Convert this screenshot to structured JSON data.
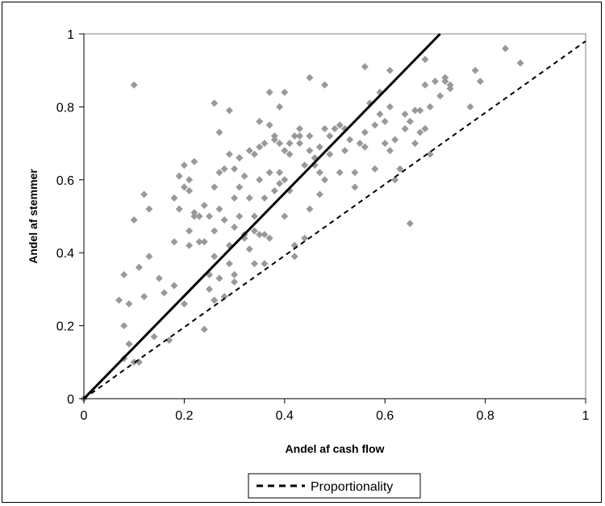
{
  "chart_data": {
    "type": "scatter",
    "title": "",
    "xlabel": "Andel af cash flow",
    "ylabel": "Andel af stemmer",
    "xlim": [
      0,
      1
    ],
    "ylim": [
      0,
      1
    ],
    "x_ticks": [
      "0",
      "0.2",
      "0.4",
      "0.6",
      "0.8",
      "1"
    ],
    "y_ticks": [
      "0",
      "0.2",
      "0.4",
      "0.6",
      "0.8",
      "1"
    ],
    "grid": false,
    "legend": {
      "position": "bottom",
      "entries": [
        "Proportionality"
      ]
    },
    "marker_color": "#999999",
    "series": [
      {
        "kind": "points",
        "points": [
          [
            0.0,
            0.0
          ],
          [
            0.07,
            0.27
          ],
          [
            0.08,
            0.11
          ],
          [
            0.08,
            0.34
          ],
          [
            0.08,
            0.2
          ],
          [
            0.09,
            0.15
          ],
          [
            0.09,
            0.26
          ],
          [
            0.1,
            0.49
          ],
          [
            0.1,
            0.86
          ],
          [
            0.1,
            0.1
          ],
          [
            0.11,
            0.1
          ],
          [
            0.11,
            0.36
          ],
          [
            0.12,
            0.56
          ],
          [
            0.12,
            0.28
          ],
          [
            0.13,
            0.39
          ],
          [
            0.13,
            0.52
          ],
          [
            0.14,
            0.17
          ],
          [
            0.15,
            0.33
          ],
          [
            0.16,
            0.29
          ],
          [
            0.17,
            0.16
          ],
          [
            0.18,
            0.31
          ],
          [
            0.18,
            0.43
          ],
          [
            0.18,
            0.55
          ],
          [
            0.19,
            0.61
          ],
          [
            0.19,
            0.52
          ],
          [
            0.2,
            0.64
          ],
          [
            0.2,
            0.58
          ],
          [
            0.2,
            0.26
          ],
          [
            0.21,
            0.42
          ],
          [
            0.21,
            0.6
          ],
          [
            0.21,
            0.57
          ],
          [
            0.21,
            0.46
          ],
          [
            0.22,
            0.65
          ],
          [
            0.22,
            0.51
          ],
          [
            0.22,
            0.5
          ],
          [
            0.23,
            0.43
          ],
          [
            0.23,
            0.5
          ],
          [
            0.24,
            0.19
          ],
          [
            0.24,
            0.43
          ],
          [
            0.24,
            0.53
          ],
          [
            0.25,
            0.3
          ],
          [
            0.25,
            0.34
          ],
          [
            0.25,
            0.5
          ],
          [
            0.26,
            0.27
          ],
          [
            0.26,
            0.39
          ],
          [
            0.26,
            0.46
          ],
          [
            0.26,
            0.58
          ],
          [
            0.26,
            0.81
          ],
          [
            0.27,
            0.73
          ],
          [
            0.27,
            0.33
          ],
          [
            0.27,
            0.62
          ],
          [
            0.27,
            0.52
          ],
          [
            0.28,
            0.28
          ],
          [
            0.28,
            0.49
          ],
          [
            0.28,
            0.63
          ],
          [
            0.29,
            0.37
          ],
          [
            0.29,
            0.42
          ],
          [
            0.29,
            0.67
          ],
          [
            0.29,
            0.79
          ],
          [
            0.3,
            0.32
          ],
          [
            0.3,
            0.34
          ],
          [
            0.3,
            0.47
          ],
          [
            0.3,
            0.55
          ],
          [
            0.3,
            0.63
          ],
          [
            0.31,
            0.66
          ],
          [
            0.31,
            0.5
          ],
          [
            0.31,
            0.66
          ],
          [
            0.31,
            0.58
          ],
          [
            0.32,
            0.44
          ],
          [
            0.32,
            0.61
          ],
          [
            0.32,
            0.45
          ],
          [
            0.33,
            0.41
          ],
          [
            0.33,
            0.55
          ],
          [
            0.33,
            0.68
          ],
          [
            0.34,
            0.67
          ],
          [
            0.34,
            0.37
          ],
          [
            0.34,
            0.46
          ],
          [
            0.34,
            0.5
          ],
          [
            0.35,
            0.45
          ],
          [
            0.35,
            0.6
          ],
          [
            0.35,
            0.76
          ],
          [
            0.35,
            0.69
          ],
          [
            0.36,
            0.37
          ],
          [
            0.36,
            0.45
          ],
          [
            0.36,
            0.55
          ],
          [
            0.36,
            0.7
          ],
          [
            0.37,
            0.75
          ],
          [
            0.37,
            0.84
          ],
          [
            0.37,
            0.62
          ],
          [
            0.37,
            0.44
          ],
          [
            0.38,
            0.57
          ],
          [
            0.38,
            0.71
          ],
          [
            0.38,
            0.72
          ],
          [
            0.39,
            0.8
          ],
          [
            0.39,
            0.7
          ],
          [
            0.39,
            0.62
          ],
          [
            0.39,
            0.59
          ],
          [
            0.4,
            0.84
          ],
          [
            0.4,
            0.5
          ],
          [
            0.4,
            0.6
          ],
          [
            0.4,
            0.68
          ],
          [
            0.41,
            0.7
          ],
          [
            0.41,
            0.67
          ],
          [
            0.41,
            0.57
          ],
          [
            0.42,
            0.39
          ],
          [
            0.42,
            0.42
          ],
          [
            0.42,
            0.72
          ],
          [
            0.43,
            0.72
          ],
          [
            0.43,
            0.7
          ],
          [
            0.43,
            0.74
          ],
          [
            0.44,
            0.44
          ],
          [
            0.44,
            0.64
          ],
          [
            0.45,
            0.72
          ],
          [
            0.45,
            0.68
          ],
          [
            0.45,
            0.52
          ],
          [
            0.45,
            0.88
          ],
          [
            0.46,
            0.64
          ],
          [
            0.46,
            0.66
          ],
          [
            0.47,
            0.62
          ],
          [
            0.47,
            0.56
          ],
          [
            0.47,
            0.69
          ],
          [
            0.48,
            0.74
          ],
          [
            0.48,
            0.86
          ],
          [
            0.48,
            0.6
          ],
          [
            0.49,
            0.72
          ],
          [
            0.49,
            0.67
          ],
          [
            0.5,
            0.74
          ],
          [
            0.51,
            0.75
          ],
          [
            0.51,
            0.62
          ],
          [
            0.52,
            0.74
          ],
          [
            0.52,
            0.68
          ],
          [
            0.53,
            0.71
          ],
          [
            0.54,
            0.58
          ],
          [
            0.54,
            0.62
          ],
          [
            0.55,
            0.7
          ],
          [
            0.56,
            0.91
          ],
          [
            0.56,
            0.73
          ],
          [
            0.56,
            0.69
          ],
          [
            0.57,
            0.81
          ],
          [
            0.58,
            0.75
          ],
          [
            0.58,
            0.63
          ],
          [
            0.59,
            0.84
          ],
          [
            0.59,
            0.78
          ],
          [
            0.6,
            0.7
          ],
          [
            0.6,
            0.76
          ],
          [
            0.61,
            0.9
          ],
          [
            0.61,
            0.68
          ],
          [
            0.61,
            0.8
          ],
          [
            0.62,
            0.71
          ],
          [
            0.62,
            0.6
          ],
          [
            0.63,
            0.63
          ],
          [
            0.64,
            0.74
          ],
          [
            0.64,
            0.78
          ],
          [
            0.65,
            0.48
          ],
          [
            0.65,
            0.76
          ],
          [
            0.66,
            0.79
          ],
          [
            0.66,
            0.7
          ],
          [
            0.67,
            0.73
          ],
          [
            0.67,
            0.79
          ],
          [
            0.68,
            0.93
          ],
          [
            0.68,
            0.86
          ],
          [
            0.68,
            0.74
          ],
          [
            0.69,
            0.67
          ],
          [
            0.69,
            0.8
          ],
          [
            0.7,
            0.87
          ],
          [
            0.71,
            0.83
          ],
          [
            0.72,
            0.88
          ],
          [
            0.72,
            0.87
          ],
          [
            0.73,
            0.85
          ],
          [
            0.73,
            0.86
          ],
          [
            0.77,
            0.8
          ],
          [
            0.78,
            0.9
          ],
          [
            0.79,
            0.87
          ],
          [
            0.84,
            0.96
          ],
          [
            0.87,
            0.92
          ]
        ]
      },
      {
        "kind": "solid-line",
        "points": [
          [
            0,
            0
          ],
          [
            0.71,
            1
          ]
        ]
      },
      {
        "kind": "dashed-line",
        "name": "Proportionality",
        "points": [
          [
            0,
            0
          ],
          [
            1,
            0.98
          ]
        ]
      }
    ]
  }
}
